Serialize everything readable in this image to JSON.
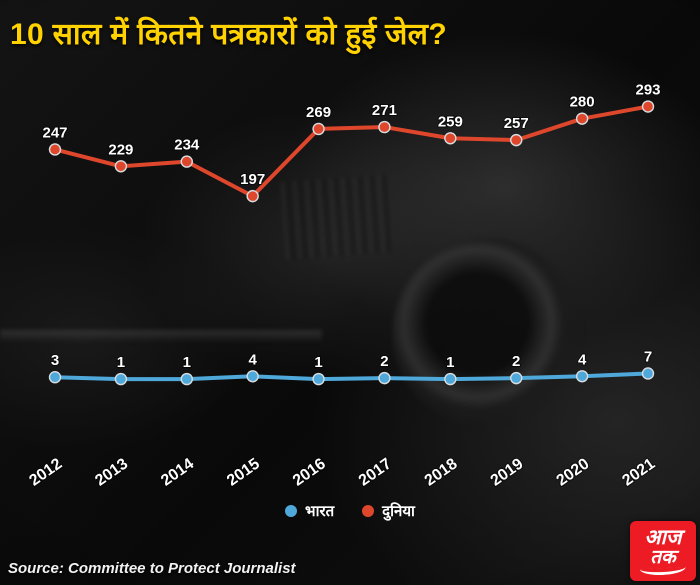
{
  "header": {
    "title": "10 साल में कितने पत्रकारों को हुई जेल?",
    "title_color": "#ffd200"
  },
  "chart_data": {
    "type": "line",
    "title": "10 साल में कितने पत्रकारों को हुई जेल?",
    "categories": [
      "2012",
      "2013",
      "2014",
      "2015",
      "2016",
      "2017",
      "2018",
      "2019",
      "2020",
      "2021"
    ],
    "series": [
      {
        "name": "भारत",
        "color": "#4fa8da",
        "values": [
          3,
          1,
          1,
          4,
          1,
          2,
          1,
          2,
          4,
          7
        ]
      },
      {
        "name": "दुनिया",
        "color": "#de472c",
        "values": [
          247,
          229,
          234,
          197,
          269,
          271,
          259,
          257,
          280,
          293
        ]
      }
    ],
    "xlabel": "",
    "ylabel": "",
    "ylim": [
      0,
      300
    ],
    "grid": false,
    "legend_position": "bottom",
    "data_labels": true
  },
  "legend": {
    "items": [
      {
        "label": "भारत",
        "color": "#4fa8da"
      },
      {
        "label": "दुनिया",
        "color": "#de472c"
      }
    ]
  },
  "footer": {
    "source": "Source: Committee to Protect Journalist"
  },
  "logo": {
    "line1": "आज",
    "line2": "तक",
    "bg_color": "#ec1b24"
  }
}
